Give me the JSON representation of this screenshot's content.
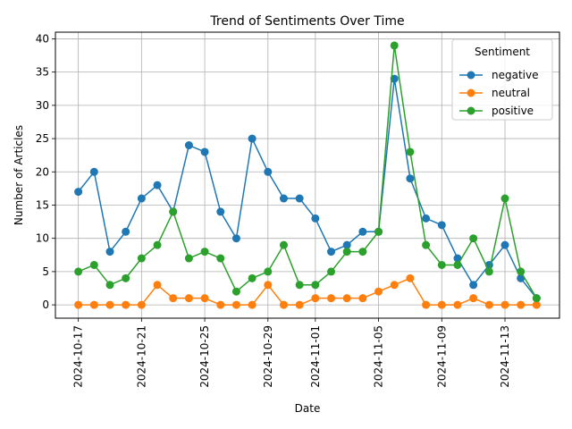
{
  "chart_data": {
    "type": "line",
    "title": "Trend of Sentiments Over Time",
    "xlabel": "Date",
    "ylabel": "Number of Articles",
    "ylim": [
      -2,
      41
    ],
    "yticks": [
      0,
      5,
      10,
      15,
      20,
      25,
      30,
      35,
      40
    ],
    "grid": true,
    "legend": {
      "title": "Sentiment",
      "placement": "top-right"
    },
    "x": [
      "2024-10-17",
      "2024-10-18",
      "2024-10-19",
      "2024-10-20",
      "2024-10-21",
      "2024-10-22",
      "2024-10-23",
      "2024-10-24",
      "2024-10-25",
      "2024-10-26",
      "2024-10-27",
      "2024-10-28",
      "2024-10-29",
      "2024-10-30",
      "2024-10-31",
      "2024-11-01",
      "2024-11-02",
      "2024-11-03",
      "2024-11-04",
      "2024-11-05",
      "2024-11-06",
      "2024-11-07",
      "2024-11-08",
      "2024-11-09",
      "2024-11-10",
      "2024-11-11",
      "2024-11-12",
      "2024-11-13",
      "2024-11-14",
      "2024-11-15"
    ],
    "xticks": [
      "2024-10-17",
      "2024-10-21",
      "2024-10-25",
      "2024-10-29",
      "2024-11-01",
      "2024-11-05",
      "2024-11-09",
      "2024-11-13"
    ],
    "series": [
      {
        "name": "negative",
        "color": "#1f77b4",
        "values": [
          17,
          20,
          8,
          11,
          16,
          18,
          14,
          24,
          23,
          14,
          10,
          25,
          20,
          16,
          16,
          13,
          8,
          9,
          11,
          11,
          34,
          19,
          13,
          12,
          7,
          3,
          6,
          9,
          4,
          1
        ]
      },
      {
        "name": "neutral",
        "color": "#ff7f0e",
        "values": [
          0,
          0,
          0,
          0,
          0,
          3,
          1,
          1,
          1,
          0,
          0,
          0,
          3,
          0,
          0,
          1,
          1,
          1,
          1,
          2,
          3,
          4,
          0,
          0,
          0,
          1,
          0,
          0,
          0,
          0
        ]
      },
      {
        "name": "positive",
        "color": "#2ca02c",
        "values": [
          5,
          6,
          3,
          4,
          7,
          9,
          14,
          7,
          8,
          7,
          2,
          4,
          5,
          9,
          3,
          3,
          5,
          8,
          8,
          11,
          39,
          23,
          9,
          6,
          6,
          10,
          5,
          16,
          5,
          1
        ]
      }
    ]
  }
}
